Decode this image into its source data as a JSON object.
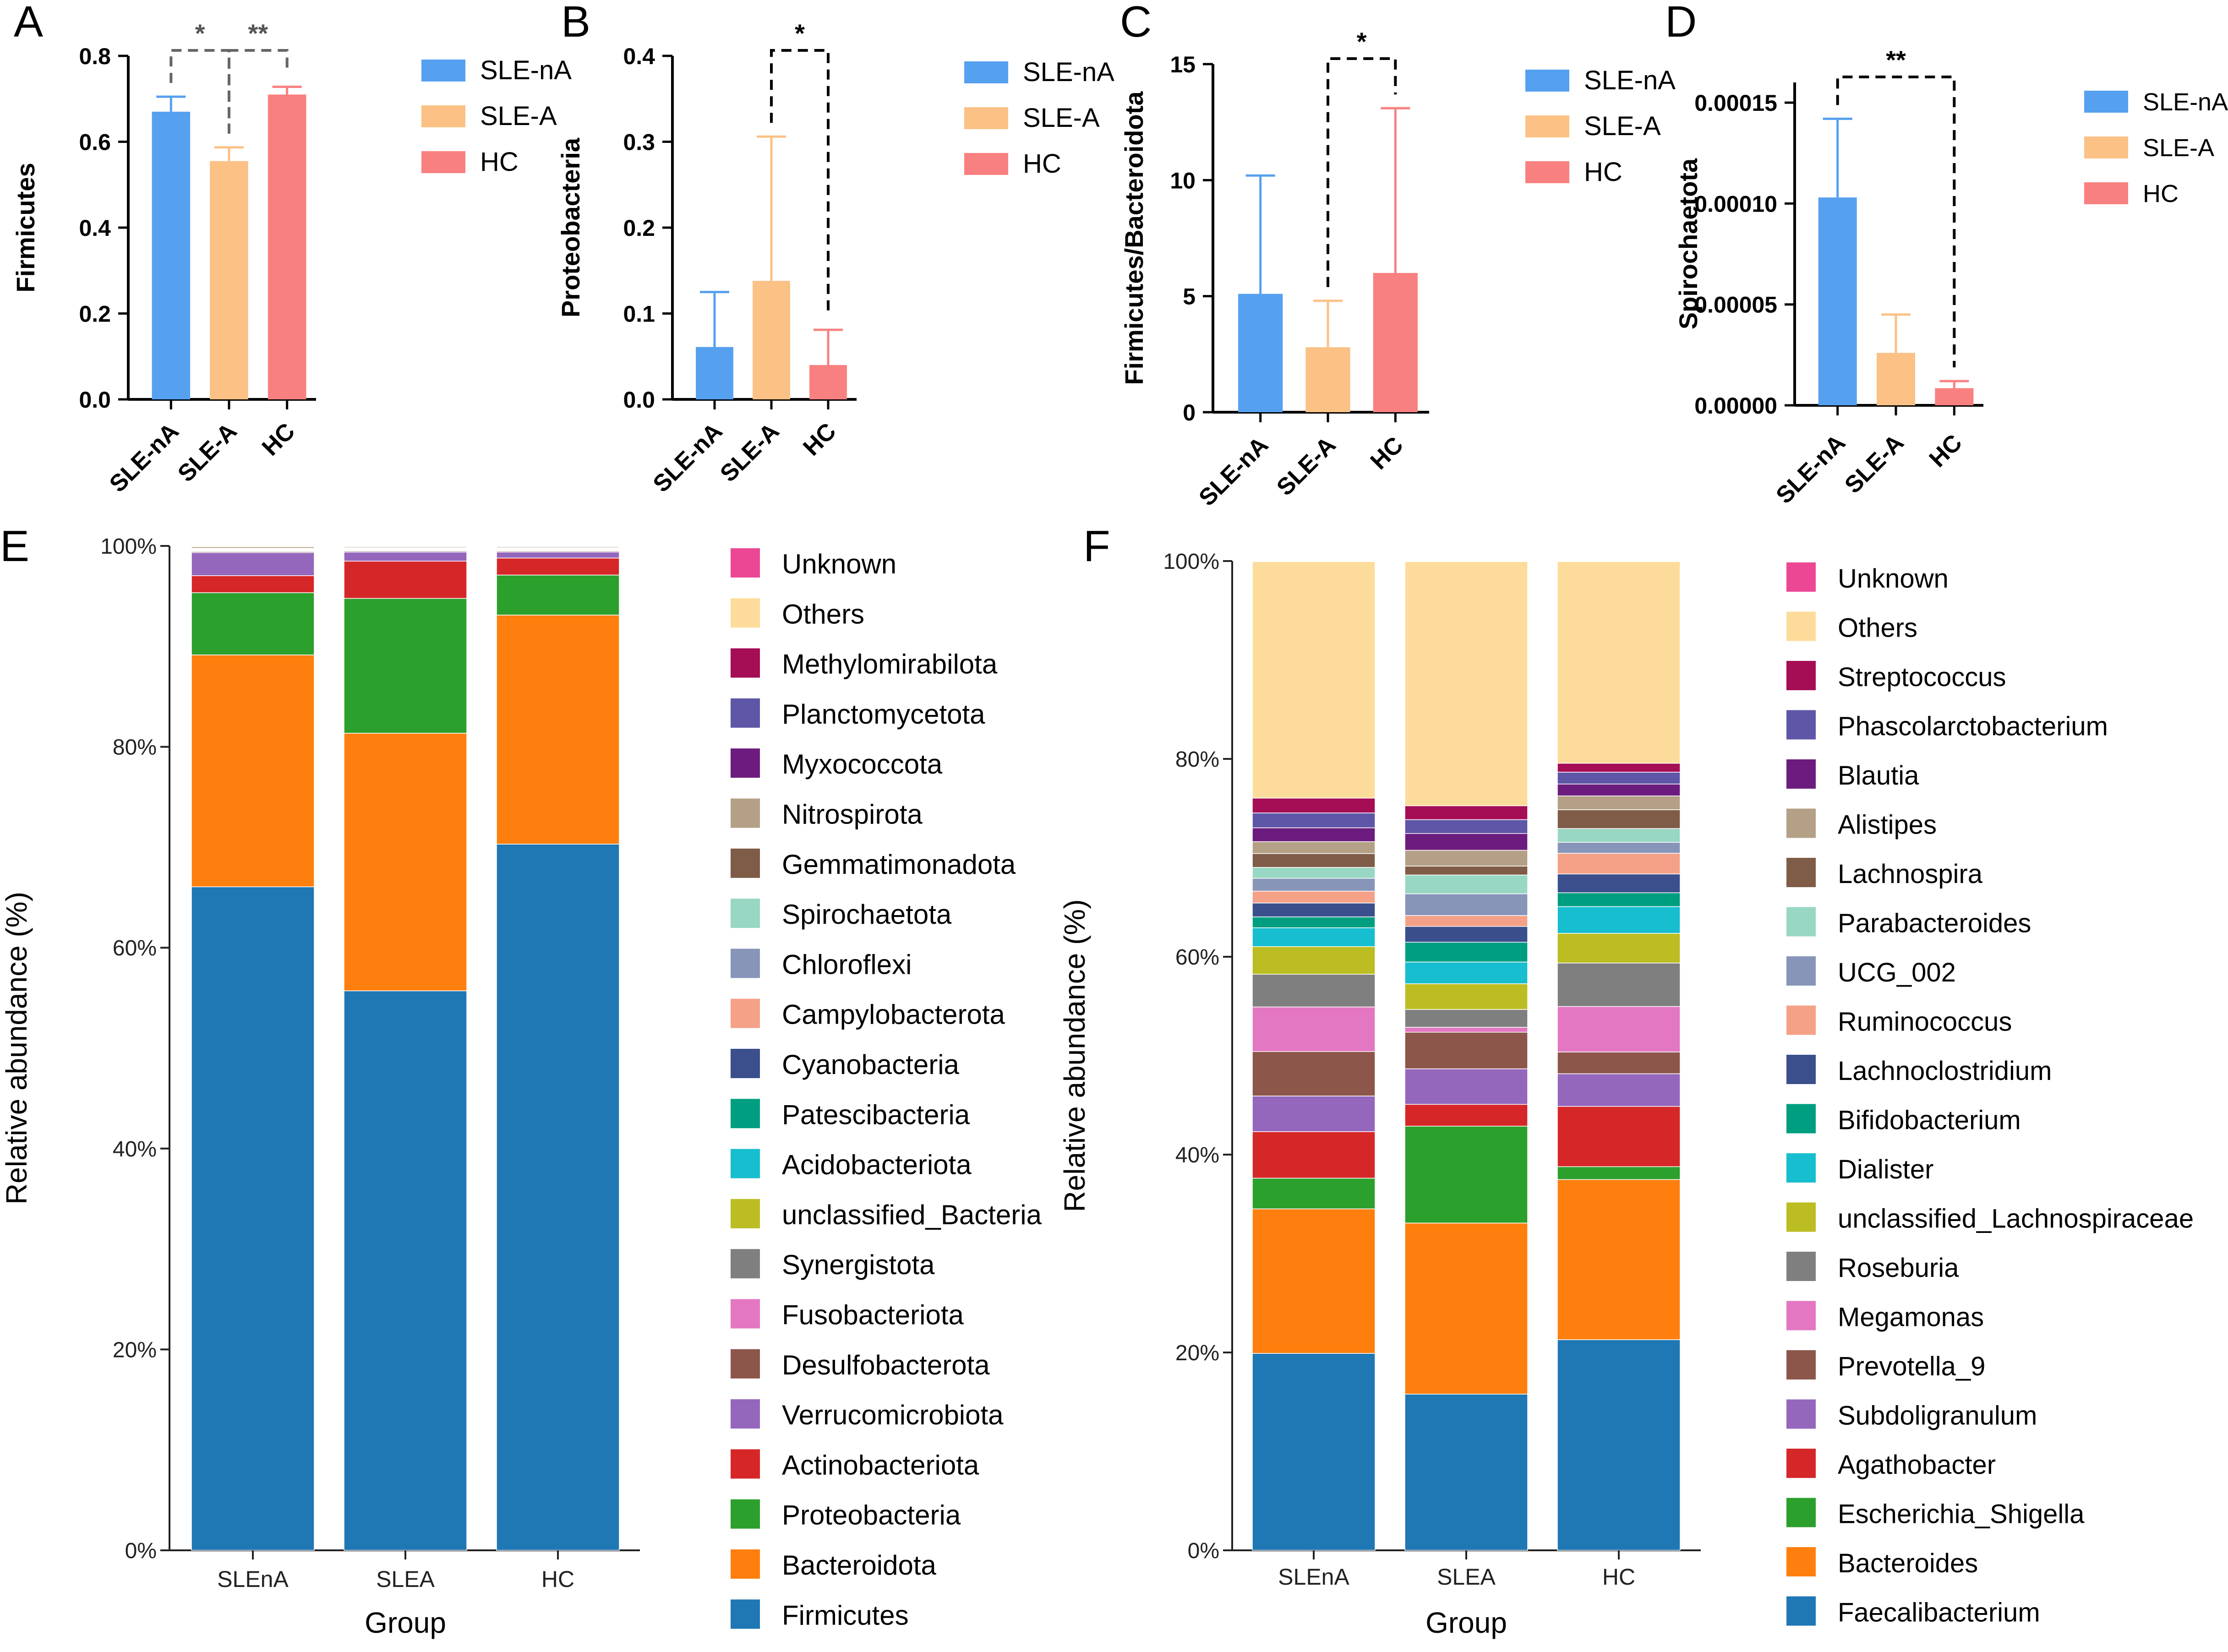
{
  "panels_bar": [
    {
      "panel_label": "A",
      "ylabel": "Firmicutes",
      "ylim": [
        0,
        0.8
      ],
      "yticks": [
        "0.0",
        "0.2",
        "0.4",
        "0.6",
        "0.8"
      ],
      "ytick_values": [
        0,
        0.2,
        0.4,
        0.6,
        0.8
      ],
      "categories": [
        "SLE-nA",
        "SLE-A",
        "HC"
      ],
      "values": [
        0.67,
        0.555,
        0.71
      ],
      "errors": [
        0.035,
        0.032,
        0.018
      ],
      "legend": [
        "SLE-nA",
        "SLE-A",
        "HC"
      ],
      "significance": [
        {
          "from": 0,
          "to": 1,
          "label": "*",
          "style": "gray"
        },
        {
          "from": 1,
          "to": 2,
          "label": "**",
          "style": "gray"
        }
      ]
    },
    {
      "panel_label": "B",
      "ylabel": "Proteobacteria",
      "ylim": [
        0,
        0.4
      ],
      "yticks": [
        "0.0",
        "0.1",
        "0.2",
        "0.3",
        "0.4"
      ],
      "ytick_values": [
        0,
        0.1,
        0.2,
        0.3,
        0.4
      ],
      "categories": [
        "SLE-nA",
        "SLE-A",
        "HC"
      ],
      "values": [
        0.061,
        0.138,
        0.04
      ],
      "errors": [
        0.064,
        0.168,
        0.041
      ],
      "legend": [
        "SLE-nA",
        "SLE-A",
        "HC"
      ],
      "significance": [
        {
          "from": 1,
          "to": 2,
          "label": "*",
          "style": "black"
        }
      ]
    },
    {
      "panel_label": "C",
      "ylabel": "Firmicutes/Bacteroidota",
      "ylim": [
        0,
        15
      ],
      "yticks": [
        "0",
        "5",
        "10",
        "15"
      ],
      "ytick_values": [
        0,
        5,
        10,
        15
      ],
      "categories": [
        "SLE-nA",
        "SLE-A",
        "HC"
      ],
      "values": [
        5.1,
        2.8,
        6.0
      ],
      "errors": [
        5.1,
        2.0,
        7.1
      ],
      "legend": [
        "SLE-nA",
        "SLE-A",
        "HC"
      ],
      "significance": [
        {
          "from": 1,
          "to": 2,
          "label": "*",
          "style": "black"
        }
      ]
    },
    {
      "panel_label": "D",
      "ylabel": "Spirochaetota",
      "ylim": [
        0,
        0.00016
      ],
      "yticks": [
        "0.00000",
        "0.00005",
        "0.00010",
        "0.00015"
      ],
      "ytick_values": [
        0,
        5e-05,
        0.0001,
        0.00015
      ],
      "categories": [
        "SLE-nA",
        "SLE-A",
        "HC"
      ],
      "values": [
        0.000103,
        2.6e-05,
        8.5e-06
      ],
      "errors": [
        3.9e-05,
        1.9e-05,
        3.5e-06
      ],
      "legend": [
        "SLE-nA",
        "SLE-A",
        "HC"
      ],
      "significance": [
        {
          "from": 0,
          "to": 2,
          "label": "**",
          "style": "black"
        }
      ]
    }
  ],
  "bar_colors": [
    "#56a0f0",
    "#fbc185",
    "#f98080"
  ],
  "stacked": [
    {
      "panel_label": "E",
      "ylabel": "Relative abundance (%)",
      "xlabel": "Group",
      "yticks": [
        "0%",
        "20%",
        "40%",
        "60%",
        "80%",
        "100%"
      ],
      "categories": [
        "SLEnA",
        "SLEA",
        "HC"
      ],
      "series_bottom_to_top": [
        {
          "name": "Firmicutes",
          "color": "#1f77b4",
          "values": [
            66.1,
            55.6,
            70.6
          ]
        },
        {
          "name": "Bacteroidota",
          "color": "#ff7f0e",
          "values": [
            23.1,
            25.6,
            22.9
          ]
        },
        {
          "name": "Proteobacteria",
          "color": "#2ca02c",
          "values": [
            6.2,
            13.4,
            4.0
          ]
        },
        {
          "name": "Actinobacteriota",
          "color": "#d62728",
          "values": [
            1.7,
            3.7,
            1.7
          ]
        },
        {
          "name": "Verrucomicrobiota",
          "color": "#9467bd",
          "values": [
            2.3,
            0.9,
            0.6
          ]
        },
        {
          "name": "Desulfobacterota",
          "color": "#8c564b",
          "values": [
            0.1,
            0.1,
            0.1
          ]
        },
        {
          "name": "Fusobacteriota",
          "color": "#e377c2",
          "values": [
            0.05,
            0.05,
            0.05
          ]
        },
        {
          "name": "Synergistota",
          "color": "#7f7f7f",
          "values": [
            0.05,
            0.05,
            0.05
          ]
        },
        {
          "name": "unclassified_Bacteria",
          "color": "#bcbd22",
          "values": [
            0.05,
            0.05,
            0.05
          ]
        },
        {
          "name": "Acidobacteriota",
          "color": "#17becf",
          "values": [
            0.03,
            0.03,
            0.03
          ]
        },
        {
          "name": "Patescibacteria",
          "color": "#009e80",
          "values": [
            0.03,
            0.03,
            0.03
          ]
        },
        {
          "name": "Cyanobacteria",
          "color": "#3a4f8c",
          "values": [
            0.03,
            0.03,
            0.03
          ]
        },
        {
          "name": "Campylobacterota",
          "color": "#f4a187",
          "values": [
            0.03,
            0.03,
            0.03
          ]
        },
        {
          "name": "Chloroflexi",
          "color": "#8795b9",
          "values": [
            0.02,
            0.02,
            0.02
          ]
        },
        {
          "name": "Spirochaetota",
          "color": "#98d7c3",
          "values": [
            0.02,
            0.02,
            0.02
          ]
        },
        {
          "name": "Gemmatimonadota",
          "color": "#7f5c47",
          "values": [
            0.02,
            0.02,
            0.02
          ]
        },
        {
          "name": "Nitrospirota",
          "color": "#b3a086",
          "values": [
            0.15,
            0.1,
            0.1
          ]
        },
        {
          "name": "Myxococcota",
          "color": "#6c1c7e",
          "values": [
            0.02,
            0.02,
            0.02
          ]
        },
        {
          "name": "Planctomycetota",
          "color": "#5e56a6",
          "values": [
            0.02,
            0.02,
            0.02
          ]
        },
        {
          "name": "Methylomirabilota",
          "color": "#a50d55",
          "values": [
            0.02,
            0.02,
            0.02
          ]
        },
        {
          "name": "Others",
          "color": "#fddc9b",
          "values": [
            0.01,
            0.01,
            0.01
          ]
        },
        {
          "name": "Unknown",
          "color": "#ec4795",
          "values": [
            0.01,
            0.01,
            0.01
          ]
        }
      ]
    },
    {
      "panel_label": "F",
      "ylabel": "Relative abundance (%)",
      "xlabel": "Group",
      "yticks": [
        "0%",
        "20%",
        "40%",
        "60%",
        "80%",
        "100%"
      ],
      "categories": [
        "SLEnA",
        "SLEA",
        "HC"
      ],
      "series_bottom_to_top": [
        {
          "name": "Faecalibacterium",
          "color": "#1f77b4",
          "values": [
            19.9,
            15.8,
            21.3
          ]
        },
        {
          "name": "Bacteroides",
          "color": "#ff7f0e",
          "values": [
            14.6,
            17.3,
            16.2
          ]
        },
        {
          "name": "Escherichia_Shigella",
          "color": "#2ca02c",
          "values": [
            3.1,
            9.8,
            1.3
          ]
        },
        {
          "name": "Agathobacter",
          "color": "#d62728",
          "values": [
            4.7,
            2.2,
            6.1
          ]
        },
        {
          "name": "Subdoligranulum",
          "color": "#9467bd",
          "values": [
            3.6,
            3.6,
            3.3
          ]
        },
        {
          "name": "Prevotella_9",
          "color": "#8c564b",
          "values": [
            4.5,
            3.7,
            2.2
          ]
        },
        {
          "name": "Megamonas",
          "color": "#e377c2",
          "values": [
            4.5,
            0.5,
            4.6
          ]
        },
        {
          "name": "Roseburia",
          "color": "#7f7f7f",
          "values": [
            3.3,
            1.8,
            4.4
          ]
        },
        {
          "name": "unclassified_Lachnospiraceae",
          "color": "#bcbd22",
          "values": [
            2.8,
            2.6,
            3.0
          ]
        },
        {
          "name": "Dialister",
          "color": "#17becf",
          "values": [
            1.9,
            2.2,
            2.7
          ]
        },
        {
          "name": "Bifidobacterium",
          "color": "#009e80",
          "values": [
            1.1,
            2.0,
            1.4
          ]
        },
        {
          "name": "Lachnoclostridium",
          "color": "#3a4f8c",
          "values": [
            1.4,
            1.6,
            1.9
          ]
        },
        {
          "name": "Ruminococcus",
          "color": "#f4a187",
          "values": [
            1.2,
            1.1,
            2.1
          ]
        },
        {
          "name": "UCG_002",
          "color": "#8795b9",
          "values": [
            1.3,
            2.2,
            1.1
          ]
        },
        {
          "name": "Parabacteroides",
          "color": "#98d7c3",
          "values": [
            1.1,
            1.9,
            1.4
          ]
        },
        {
          "name": "Lachnospira",
          "color": "#7f5c47",
          "values": [
            1.4,
            0.9,
            1.9
          ]
        },
        {
          "name": "Alistipes",
          "color": "#b3a086",
          "values": [
            1.2,
            1.6,
            1.4
          ]
        },
        {
          "name": "Blautia",
          "color": "#6c1c7e",
          "values": [
            1.4,
            1.7,
            1.2
          ]
        },
        {
          "name": "Phascolarctobacterium",
          "color": "#5e56a6",
          "values": [
            1.5,
            1.4,
            1.2
          ]
        },
        {
          "name": "Streptococcus",
          "color": "#a50d55",
          "values": [
            1.5,
            1.4,
            0.9
          ]
        },
        {
          "name": "Others",
          "color": "#fddc9b",
          "values": [
            23.9,
            24.7,
            20.4
          ]
        },
        {
          "name": "Unknown",
          "color": "#ec4795",
          "values": [
            0.05,
            0.05,
            0.05
          ]
        }
      ]
    }
  ]
}
